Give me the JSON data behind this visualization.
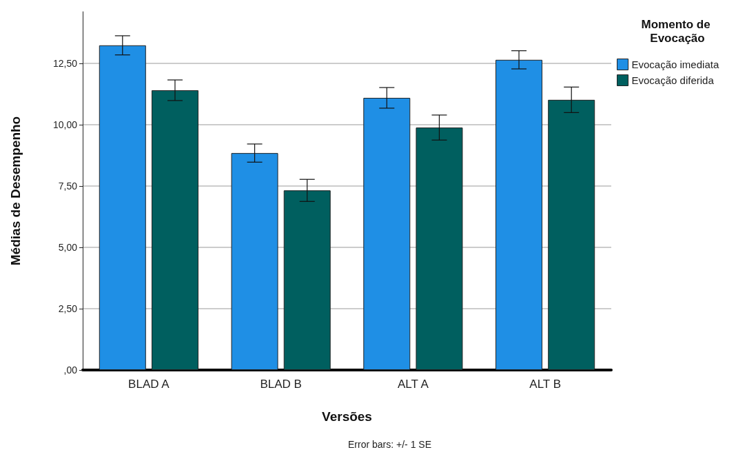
{
  "chart_data": {
    "type": "bar",
    "xlabel": "Versões",
    "ylabel": "Médias de Desempenho",
    "legend_title": "Momento de Evocação",
    "legend": "top right",
    "grid": "y",
    "categories": [
      "BLAD A",
      "BLAD B",
      "ALT A",
      "ALT B"
    ],
    "series": [
      {
        "name": "Evocação imediata",
        "color": "#1f8fe5",
        "values": [
          13.23,
          8.84,
          11.09,
          12.64
        ],
        "errors": [
          0.39,
          0.37,
          0.42,
          0.37
        ]
      },
      {
        "name": "Evocação diferida",
        "color": "#005f5f",
        "values": [
          11.4,
          7.32,
          9.88,
          11.01
        ],
        "errors": [
          0.42,
          0.45,
          0.51,
          0.52
        ]
      }
    ],
    "ylim": [
      0,
      14.6
    ],
    "yticks": [
      {
        "value": 0,
        "label": ",00"
      },
      {
        "value": 2.5,
        "label": "2,50"
      },
      {
        "value": 5,
        "label": "5,00"
      },
      {
        "value": 7.5,
        "label": "7,50"
      },
      {
        "value": 10,
        "label": "10,00"
      },
      {
        "value": 12.5,
        "label": "12,50"
      }
    ],
    "annotations": [
      "Error bars: +/- 1 SE"
    ]
  }
}
